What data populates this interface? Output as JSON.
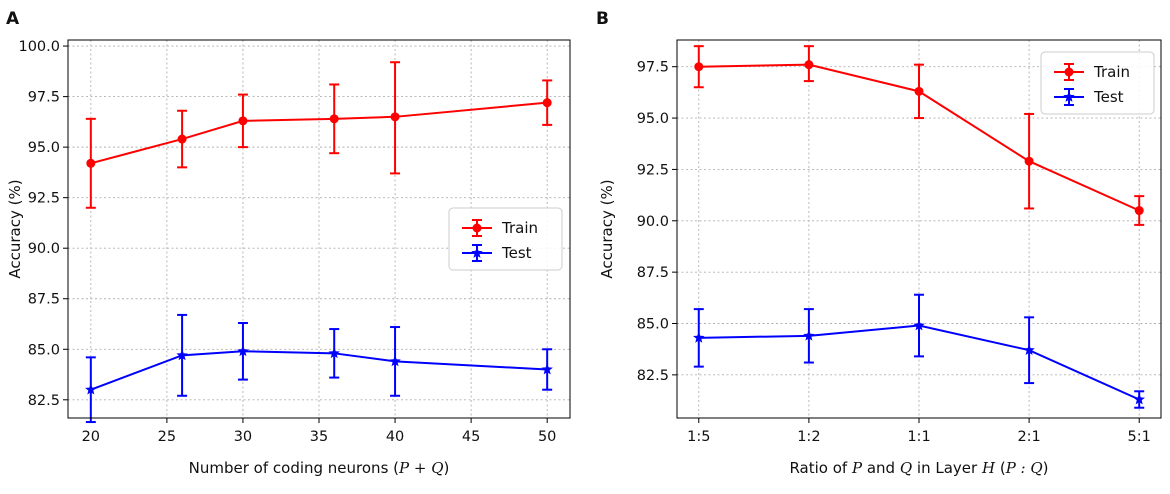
{
  "chart_data": [
    {
      "type": "line",
      "panel_label": "A",
      "xlabel_prefix": "Number of coding neurons (",
      "xlabel_math": "P + Q",
      "xlabel_suffix": ")",
      "ylabel": "Accuracy (%)",
      "x": [
        20,
        26,
        30,
        36,
        40,
        50
      ],
      "xticks": [
        20,
        25,
        30,
        35,
        40,
        45,
        50
      ],
      "xlim": [
        18.5,
        51.5
      ],
      "yticks": [
        "82.5",
        "85.0",
        "87.5",
        "90.0",
        "92.5",
        "95.0",
        "97.5",
        "100.0"
      ],
      "ylim": [
        81.6,
        100.3
      ],
      "grid": true,
      "legend_position": "center-right",
      "series": [
        {
          "name": "Train",
          "color": "#ff0000",
          "marker": "circle",
          "values": [
            94.2,
            95.4,
            96.3,
            96.4,
            96.5,
            97.2
          ],
          "err_low": [
            92.0,
            94.0,
            95.0,
            94.7,
            93.7,
            96.1
          ],
          "err_high": [
            96.4,
            96.8,
            97.6,
            98.1,
            99.2,
            98.3
          ]
        },
        {
          "name": "Test",
          "color": "#0000ff",
          "marker": "star",
          "values": [
            83.0,
            84.7,
            84.9,
            84.8,
            84.4,
            84.0
          ],
          "err_low": [
            81.4,
            82.7,
            83.5,
            83.6,
            82.7,
            83.0
          ],
          "err_high": [
            84.6,
            86.7,
            86.3,
            86.0,
            86.1,
            85.0
          ]
        }
      ]
    },
    {
      "type": "line",
      "panel_label": "B",
      "xlabel_prefix": "Ratio of ",
      "xlabel_math": "P",
      "xlabel_mid1": " and ",
      "xlabel_math2": "Q",
      "xlabel_mid2": " in Layer ",
      "xlabel_math3": "H",
      "xlabel_mid3": " (",
      "xlabel_math4": "P : Q",
      "xlabel_suffix": ")",
      "ylabel": "Accuracy (%)",
      "categories": [
        "1:5",
        "1:2",
        "1:1",
        "2:1",
        "5:1"
      ],
      "yticks": [
        "82.5",
        "85.0",
        "87.5",
        "90.0",
        "92.5",
        "95.0",
        "97.5"
      ],
      "ylim": [
        80.4,
        98.8
      ],
      "grid": true,
      "legend_position": "top-right",
      "series": [
        {
          "name": "Train",
          "color": "#ff0000",
          "marker": "circle",
          "values": [
            97.5,
            97.6,
            96.3,
            92.9,
            90.5
          ],
          "err_low": [
            96.5,
            96.8,
            95.0,
            90.6,
            89.8
          ],
          "err_high": [
            98.5,
            98.5,
            97.6,
            95.2,
            91.2
          ]
        },
        {
          "name": "Test",
          "color": "#0000ff",
          "marker": "star",
          "values": [
            84.3,
            84.4,
            84.9,
            83.7,
            81.3
          ],
          "err_low": [
            82.9,
            83.1,
            83.4,
            82.1,
            80.9
          ],
          "err_high": [
            85.7,
            85.7,
            86.4,
            85.3,
            81.7
          ]
        }
      ]
    }
  ]
}
